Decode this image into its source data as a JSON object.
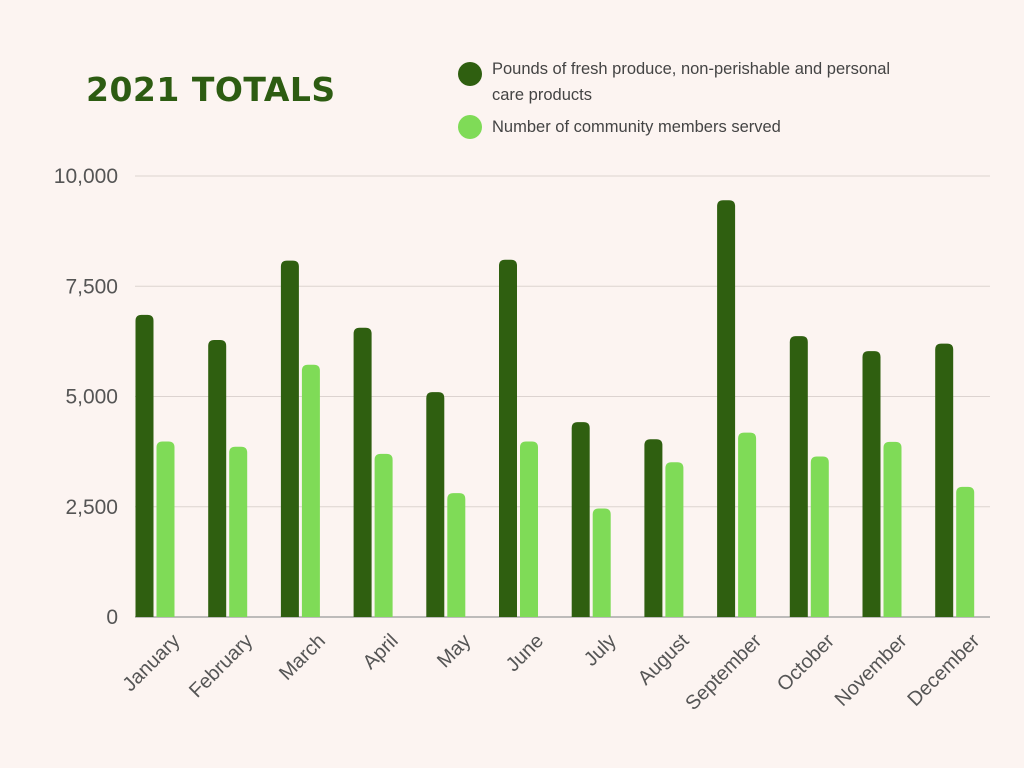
{
  "title": "2021 TOTALS",
  "chart_data": {
    "type": "bar",
    "categories": [
      "January",
      "February",
      "March",
      "April",
      "May",
      "June",
      "July",
      "August",
      "September",
      "October",
      "November",
      "December"
    ],
    "series": [
      {
        "name": "Pounds of fresh produce, non-perishable and personal care products",
        "color": "#2f5f10",
        "values": [
          6850,
          6280,
          8080,
          6560,
          5100,
          8100,
          4420,
          4030,
          9450,
          6370,
          6030,
          6200
        ]
      },
      {
        "name": "Number of community members served",
        "color": "#7fdb57",
        "values": [
          3980,
          3860,
          5720,
          3700,
          2810,
          3980,
          2460,
          3510,
          4180,
          3640,
          3970,
          2950
        ]
      }
    ],
    "ylim": [
      0,
      10000
    ],
    "yticks": [
      0,
      2500,
      5000,
      7500,
      10000
    ],
    "ytick_labels": [
      "0",
      "2,500",
      "5,000",
      "7,500",
      "10,000"
    ],
    "grid": true,
    "legend_position": "top-right"
  }
}
